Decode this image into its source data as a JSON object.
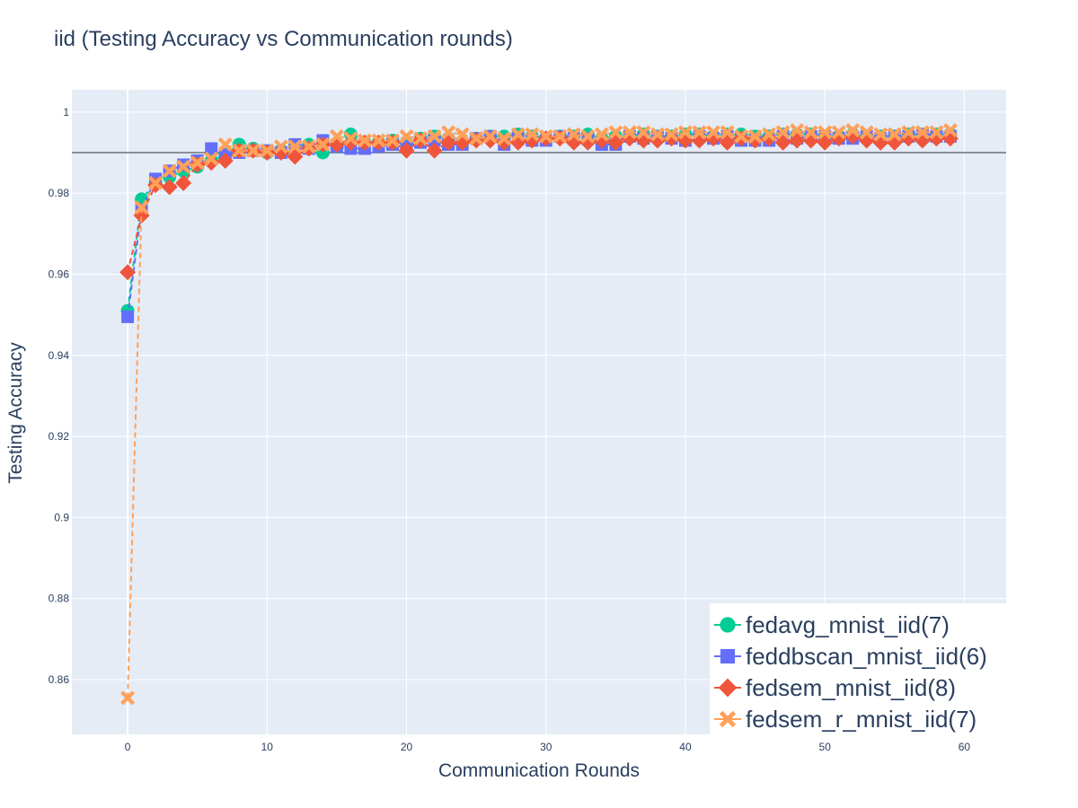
{
  "chart_data": {
    "type": "scatter",
    "title": "iid (Testing Accuracy vs Communication rounds)",
    "xlabel": "Communication Rounds",
    "ylabel": "Testing Accuracy",
    "xlim": [
      -4,
      63
    ],
    "ylim": [
      0.8465,
      1.0055
    ],
    "x_ticks": [
      0,
      10,
      20,
      30,
      40,
      50,
      60
    ],
    "x_tick_labels": [
      "0",
      "10",
      "20",
      "30",
      "40",
      "50",
      "60"
    ],
    "y_ticks": [
      0.86,
      0.88,
      0.9,
      0.92,
      0.94,
      0.96,
      0.98,
      1.0
    ],
    "y_tick_labels": [
      "0.86",
      "0.88",
      "0.9",
      "0.92",
      "0.94",
      "0.96",
      "0.98",
      "1"
    ],
    "reference_line": {
      "y": 0.99,
      "color": "#8a8f99"
    },
    "grid": true,
    "plot_background": "#e5ecf6",
    "legend_position": "bottom-right",
    "x": [
      0,
      1,
      2,
      3,
      4,
      5,
      6,
      7,
      8,
      9,
      10,
      11,
      12,
      13,
      14,
      15,
      16,
      17,
      18,
      19,
      20,
      21,
      22,
      23,
      24,
      25,
      26,
      27,
      28,
      29,
      30,
      31,
      32,
      33,
      34,
      35,
      36,
      37,
      38,
      39,
      40,
      41,
      42,
      43,
      44,
      45,
      46,
      47,
      48,
      49,
      50,
      51,
      52,
      53,
      54,
      55,
      56,
      57,
      58,
      59
    ],
    "series": [
      {
        "name": "fedavg_mnist_iid(7)",
        "color": "#00cc96",
        "marker": "circle",
        "values": [
          0.951,
          0.9785,
          0.9825,
          0.984,
          0.9855,
          0.9865,
          0.988,
          0.9895,
          0.992,
          0.991,
          0.99,
          0.9905,
          0.9915,
          0.992,
          0.99,
          0.9915,
          0.9945,
          0.9925,
          0.9925,
          0.993,
          0.9925,
          0.9935,
          0.994,
          0.9935,
          0.9925,
          0.9935,
          0.994,
          0.994,
          0.9945,
          0.994,
          0.9935,
          0.994,
          0.994,
          0.9945,
          0.9935,
          0.994,
          0.994,
          0.9945,
          0.994,
          0.994,
          0.9945,
          0.9945,
          0.994,
          0.9945,
          0.9945,
          0.994,
          0.994,
          0.9945,
          0.9945,
          0.9945,
          0.994,
          0.994,
          0.9945,
          0.994,
          0.994,
          0.994,
          0.9945,
          0.9945,
          0.9945,
          0.9945
        ]
      },
      {
        "name": "feddbscan_mnist_iid(6)",
        "color": "#636efa",
        "marker": "square",
        "values": [
          0.9495,
          0.976,
          0.9835,
          0.9855,
          0.987,
          0.988,
          0.991,
          0.9895,
          0.99,
          0.9905,
          0.9905,
          0.99,
          0.992,
          0.991,
          0.993,
          0.9915,
          0.991,
          0.991,
          0.9915,
          0.992,
          0.9915,
          0.9925,
          0.993,
          0.992,
          0.992,
          0.9935,
          0.994,
          0.992,
          0.9935,
          0.993,
          0.993,
          0.994,
          0.9935,
          0.9935,
          0.992,
          0.992,
          0.994,
          0.9935,
          0.994,
          0.9935,
          0.993,
          0.994,
          0.9935,
          0.994,
          0.993,
          0.993,
          0.993,
          0.994,
          0.9935,
          0.994,
          0.994,
          0.9935,
          0.9935,
          0.994,
          0.9935,
          0.994,
          0.994,
          0.9945,
          0.994,
          0.994
        ]
      },
      {
        "name": "fedsem_mnist_iid(8)",
        "color": "#ef553b",
        "marker": "diamond",
        "values": [
          0.9605,
          0.9745,
          0.982,
          0.9815,
          0.9825,
          0.987,
          0.9875,
          0.988,
          0.9905,
          0.9905,
          0.99,
          0.99,
          0.989,
          0.991,
          0.992,
          0.992,
          0.9925,
          0.9925,
          0.9925,
          0.9925,
          0.9905,
          0.993,
          0.9905,
          0.9925,
          0.9925,
          0.993,
          0.993,
          0.9925,
          0.9925,
          0.993,
          0.9935,
          0.9935,
          0.9925,
          0.9925,
          0.993,
          0.9925,
          0.9935,
          0.993,
          0.993,
          0.9935,
          0.993,
          0.993,
          0.9935,
          0.9925,
          0.9935,
          0.993,
          0.9935,
          0.9925,
          0.993,
          0.993,
          0.9925,
          0.9935,
          0.994,
          0.993,
          0.9925,
          0.9925,
          0.9935,
          0.993,
          0.9935,
          0.9935
        ]
      },
      {
        "name": "fedsem_r_mnist_iid(7)",
        "color": "#ffa15a",
        "marker": "x",
        "values": [
          0.8555,
          0.9765,
          0.9825,
          0.9855,
          0.9865,
          0.9875,
          0.9885,
          0.992,
          0.9905,
          0.9905,
          0.9905,
          0.9915,
          0.9915,
          0.9915,
          0.992,
          0.994,
          0.9935,
          0.993,
          0.993,
          0.993,
          0.994,
          0.9935,
          0.994,
          0.995,
          0.9945,
          0.9935,
          0.994,
          0.9935,
          0.9945,
          0.9945,
          0.994,
          0.994,
          0.9945,
          0.994,
          0.9945,
          0.995,
          0.995,
          0.995,
          0.9945,
          0.9945,
          0.995,
          0.995,
          0.995,
          0.995,
          0.994,
          0.994,
          0.9945,
          0.995,
          0.9955,
          0.995,
          0.995,
          0.995,
          0.9955,
          0.995,
          0.9945,
          0.9945,
          0.995,
          0.995,
          0.995,
          0.9955
        ]
      }
    ]
  }
}
